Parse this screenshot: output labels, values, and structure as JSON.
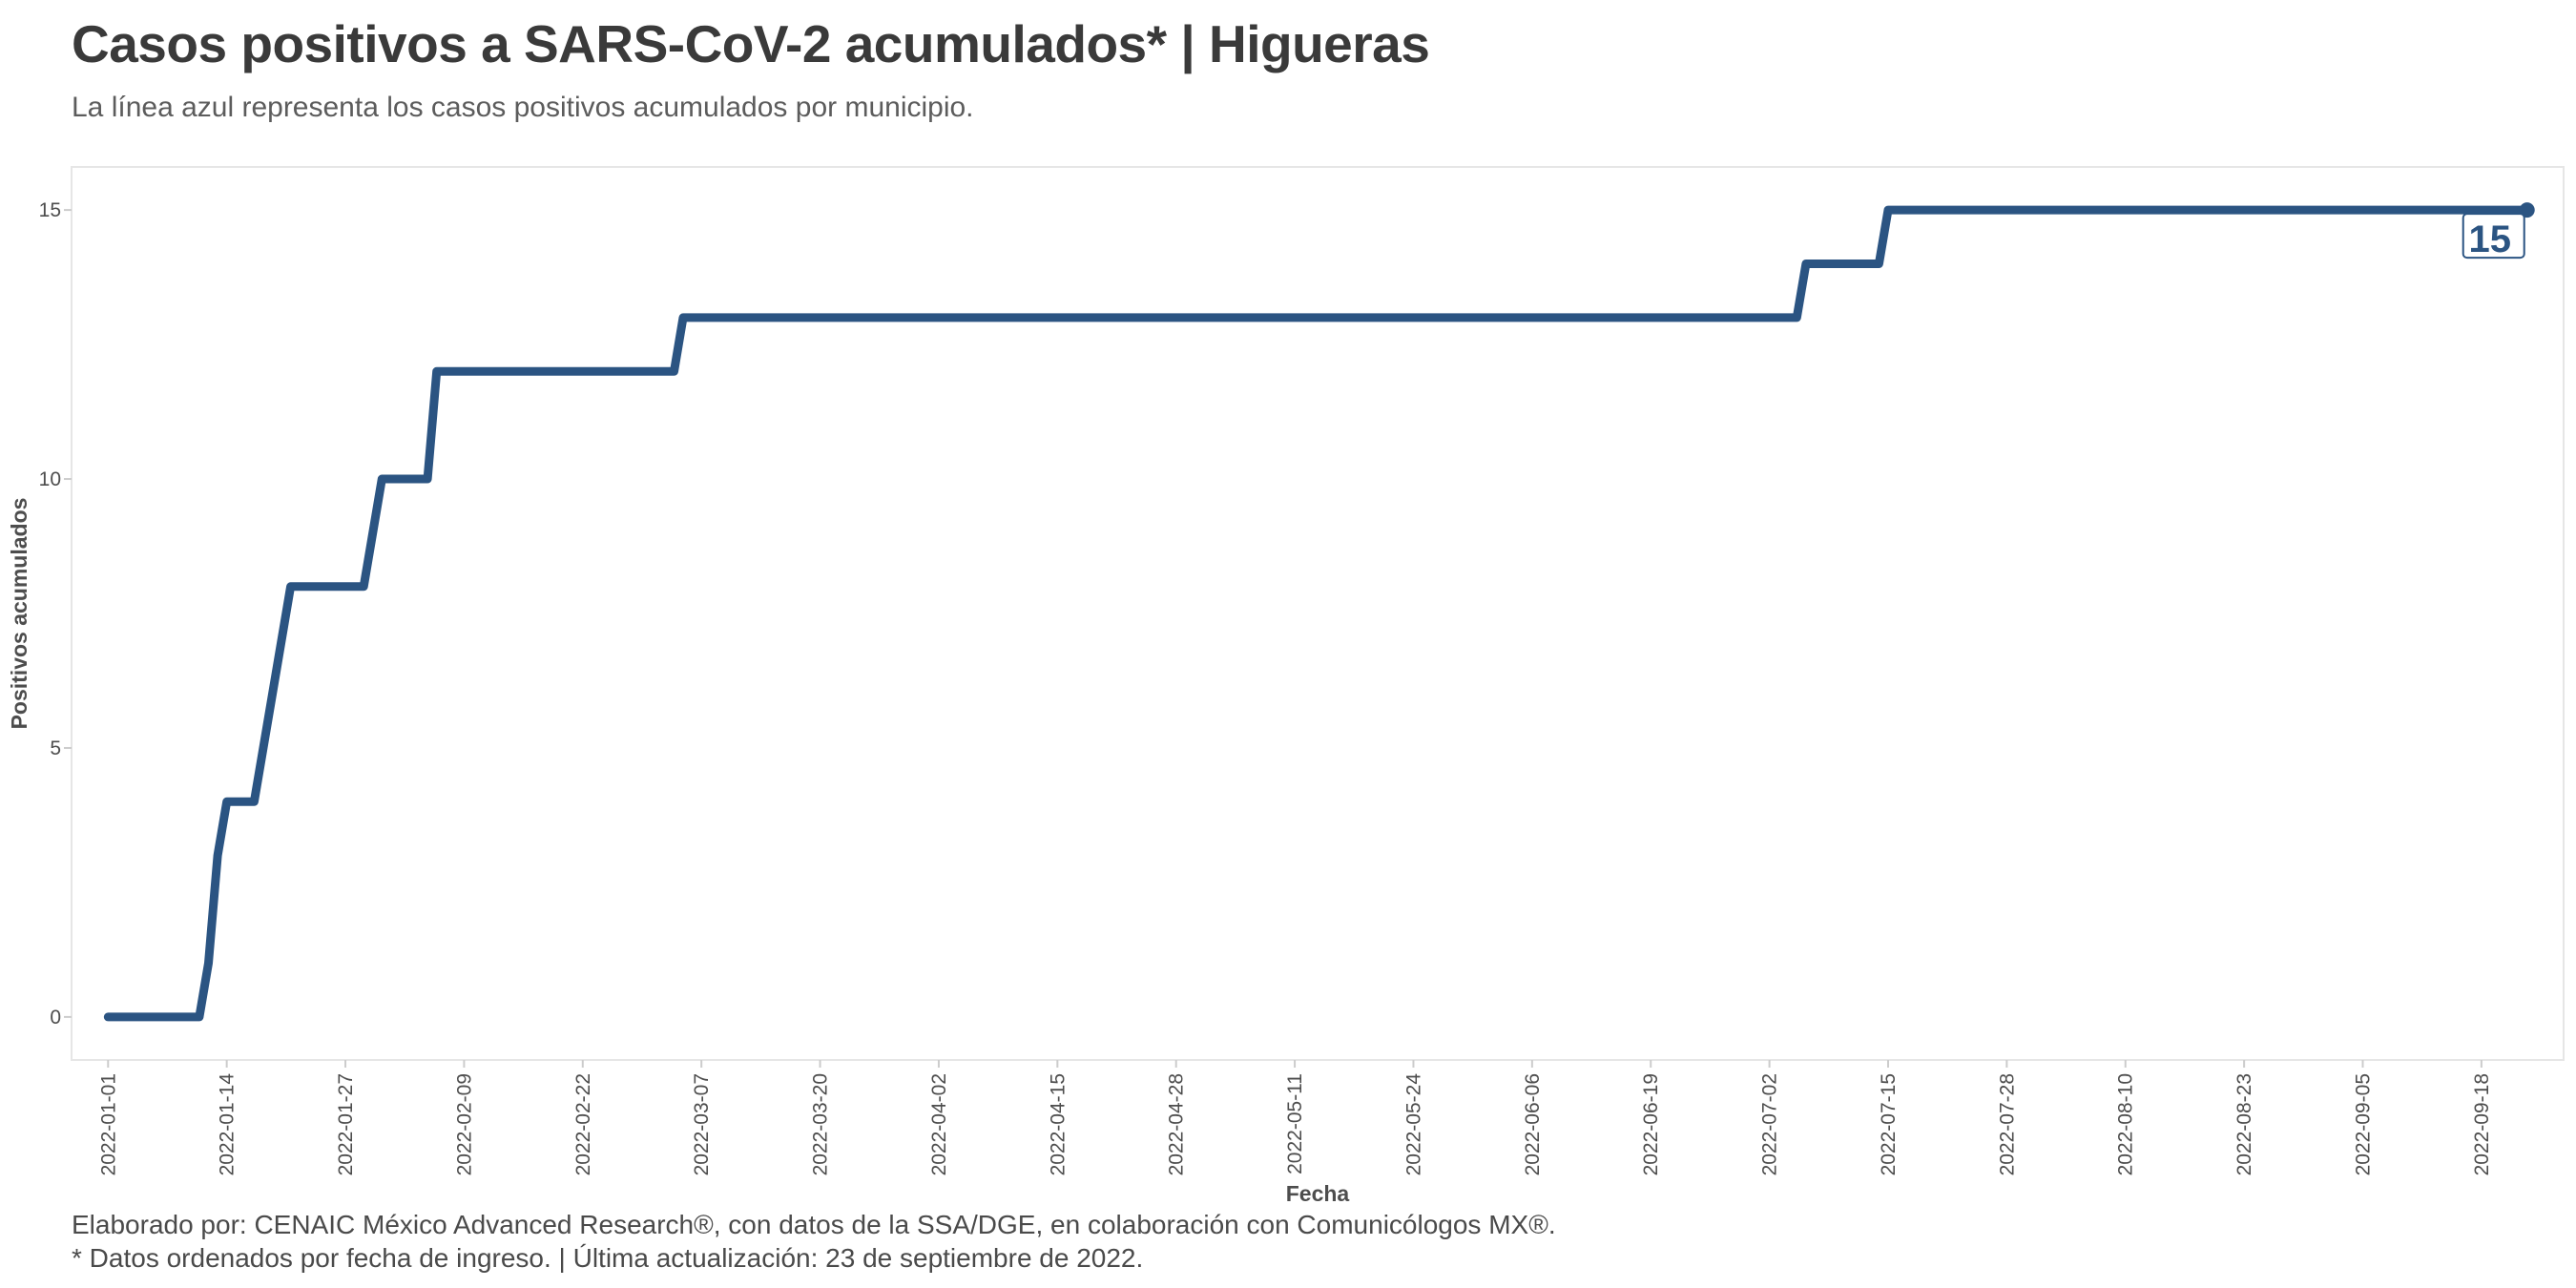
{
  "header": {
    "title": "Casos positivos a SARS-CoV-2 acumulados* | Higueras",
    "subtitle": "La línea azul representa los casos positivos acumulados por municipio."
  },
  "footer": {
    "caption_line1": "Elaborado por: CENAIC México Advanced Research®, con datos de la SSA/DGE, en colaboración con Comunicólogos MX®.",
    "caption_line2": "* Datos ordenados por fecha de ingreso. | Última actualización: 23 de septiembre de 2022."
  },
  "colors": {
    "line": "#2b5482",
    "panel_border": "#e6e6e6",
    "text": "#3a3a3a"
  },
  "chart_data": {
    "type": "line",
    "title": "Casos positivos a SARS-CoV-2 acumulados* | Higueras",
    "xlabel": "Fecha",
    "ylabel": "Positivos acumulados",
    "x_is_date": true,
    "xlim": [
      "2021-12-28",
      "2022-09-27"
    ],
    "ylim": [
      -0.8,
      15.8
    ],
    "grid": false,
    "legend": "none",
    "x_ticks": [
      "2022-01-01",
      "2022-01-14",
      "2022-01-27",
      "2022-02-09",
      "2022-02-22",
      "2022-03-07",
      "2022-03-20",
      "2022-04-02",
      "2022-04-15",
      "2022-04-28",
      "2022-05-11",
      "2022-05-24",
      "2022-06-06",
      "2022-06-19",
      "2022-07-02",
      "2022-07-15",
      "2022-07-28",
      "2022-08-10",
      "2022-08-23",
      "2022-09-05",
      "2022-09-18"
    ],
    "y_ticks": [
      0,
      5,
      10,
      15
    ],
    "series": [
      {
        "name": "",
        "points": [
          [
            "2022-01-01",
            0
          ],
          [
            "2022-01-11",
            0
          ],
          [
            "2022-01-12",
            1
          ],
          [
            "2022-01-13",
            3
          ],
          [
            "2022-01-14",
            4
          ],
          [
            "2022-01-17",
            4
          ],
          [
            "2022-01-19",
            6
          ],
          [
            "2022-01-21",
            8
          ],
          [
            "2022-01-29",
            8
          ],
          [
            "2022-01-31",
            10
          ],
          [
            "2022-02-05",
            10
          ],
          [
            "2022-02-06",
            12
          ],
          [
            "2022-03-04",
            12
          ],
          [
            "2022-03-05",
            13
          ],
          [
            "2022-07-05",
            13
          ],
          [
            "2022-07-06",
            14
          ],
          [
            "2022-07-14",
            14
          ],
          [
            "2022-07-15",
            15
          ],
          [
            "2022-09-23",
            15
          ]
        ]
      }
    ],
    "end_label": "15"
  }
}
